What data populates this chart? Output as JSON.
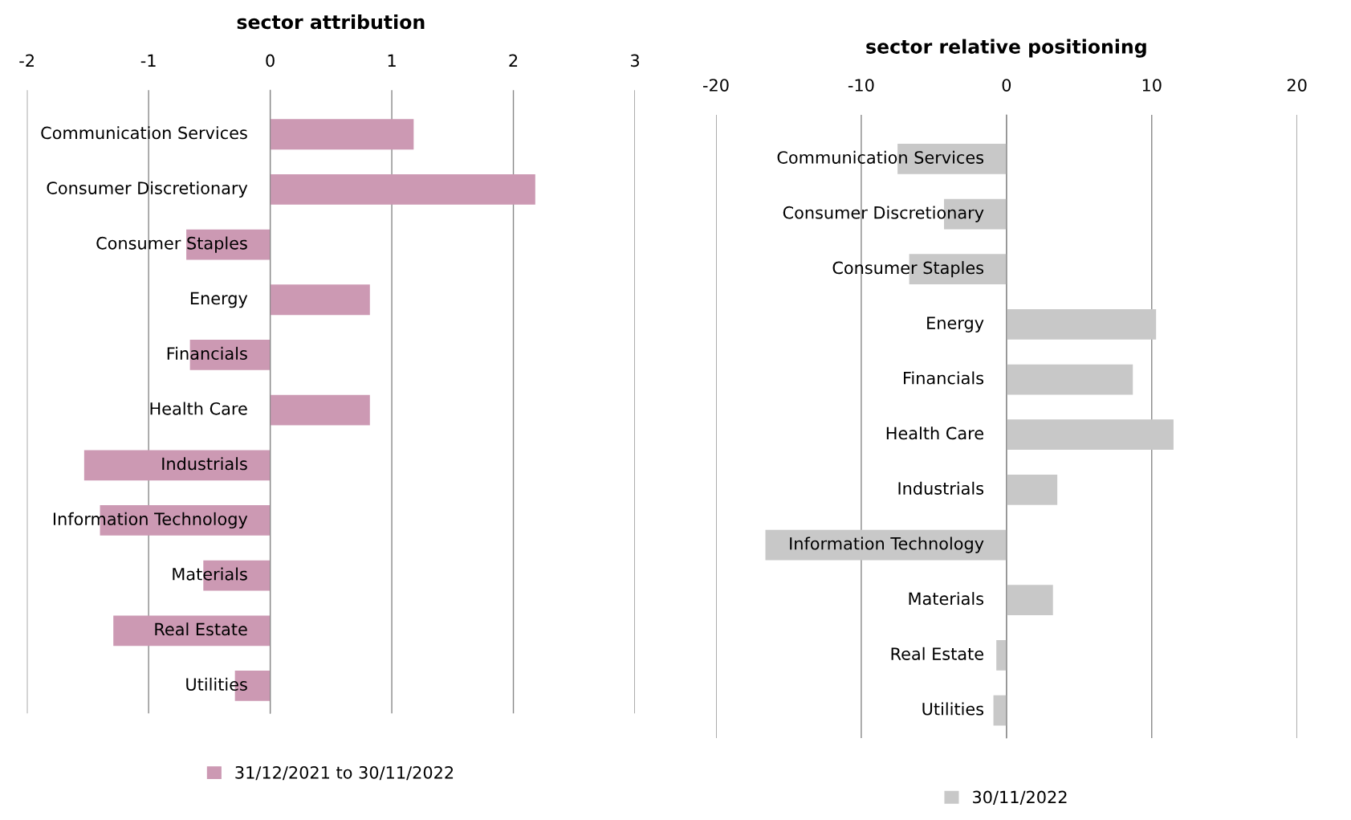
{
  "chart_data": [
    {
      "type": "bar",
      "orientation": "horizontal",
      "title": "sector attribution",
      "categories": [
        "Communication Services",
        "Consumer Discretionary",
        "Consumer Staples",
        "Energy",
        "Financials",
        "Health Care",
        "Industrials",
        "Information Technology",
        "Materials",
        "Real Estate",
        "Utilities"
      ],
      "series": [
        {
          "name": "31/12/2021 to 30/11/2022",
          "color": "#cc99b3",
          "values": [
            1.18,
            2.18,
            -0.69,
            0.82,
            -0.66,
            0.82,
            -1.53,
            -1.4,
            -0.55,
            -1.29,
            -0.29
          ]
        }
      ],
      "xlim": [
        -2,
        3
      ],
      "xticks": [
        -2,
        -1,
        0,
        1,
        2,
        3
      ],
      "grid": "x",
      "legend": "bottom"
    },
    {
      "type": "bar",
      "orientation": "horizontal",
      "title": "sector relative positioning",
      "categories": [
        "Communication Services",
        "Consumer Discretionary",
        "Consumer Staples",
        "Energy",
        "Financials",
        "Health Care",
        "Industrials",
        "Information Technology",
        "Materials",
        "Real Estate",
        "Utilities"
      ],
      "series": [
        {
          "name": "30/11/2022",
          "color": "#c8c8c8",
          "values": [
            -7.5,
            -4.3,
            -6.7,
            10.3,
            8.7,
            11.5,
            3.5,
            -16.6,
            3.2,
            -0.7,
            -0.9
          ]
        }
      ],
      "xlim": [
        -20,
        20
      ],
      "xticks": [
        -20,
        -10,
        0,
        10,
        20
      ],
      "grid": "x",
      "legend": "bottom"
    }
  ]
}
